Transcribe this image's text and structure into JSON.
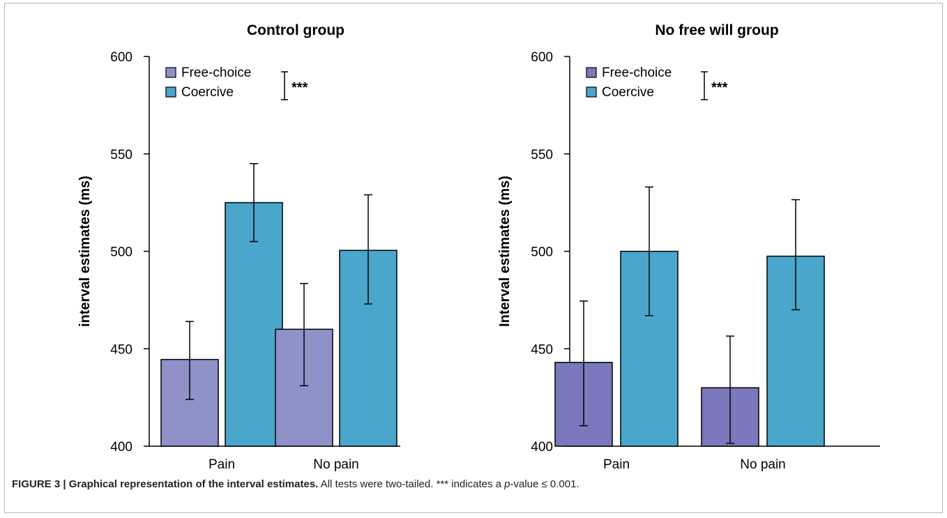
{
  "chart_data": [
    {
      "type": "bar",
      "title": "Control group",
      "ylabel": "interval estimates (ms)",
      "xlabel": "",
      "ylim": [
        400,
        600
      ],
      "yticks": [
        400,
        450,
        500,
        550,
        600
      ],
      "categories": [
        "Pain",
        "No pain"
      ],
      "series": [
        {
          "name": "Free-choice",
          "color": "#8f91c9",
          "values": [
            444.5,
            460
          ],
          "error": [
            [
              424,
              464
            ],
            [
              431,
              483.5
            ]
          ]
        },
        {
          "name": "Coercive",
          "color": "#4aa6cb",
          "values": [
            525,
            500.5
          ],
          "error": [
            [
              505,
              545
            ],
            [
              473,
              529
            ]
          ]
        }
      ],
      "legend_position": "top-left",
      "significance": "***",
      "grid": false
    },
    {
      "type": "bar",
      "title": "No free will group",
      "ylabel": "Interval estimates (ms)",
      "xlabel": "",
      "ylim": [
        400,
        600
      ],
      "yticks": [
        400,
        450,
        500,
        550,
        600
      ],
      "categories": [
        "Pain",
        "No pain"
      ],
      "series": [
        {
          "name": "Free-choice",
          "color": "#7b78bb",
          "values": [
            443,
            430
          ],
          "error": [
            [
              410.5,
              474.5
            ],
            [
              401.5,
              456.5
            ]
          ]
        },
        {
          "name": "Coercive",
          "color": "#4aa6cb",
          "values": [
            500,
            497.5
          ],
          "error": [
            [
              467,
              533
            ],
            [
              470,
              526.5
            ]
          ]
        }
      ],
      "legend_position": "top-left",
      "significance": "***",
      "grid": false
    }
  ],
  "caption": {
    "label": "FIGURE 3 | ",
    "title": "Graphical representation of the interval estimates.",
    "text_before_p": " All tests were two-tailed. *** indicates a ",
    "p_symbol": "p",
    "text_after_p": "-value ≤ 0.001."
  }
}
